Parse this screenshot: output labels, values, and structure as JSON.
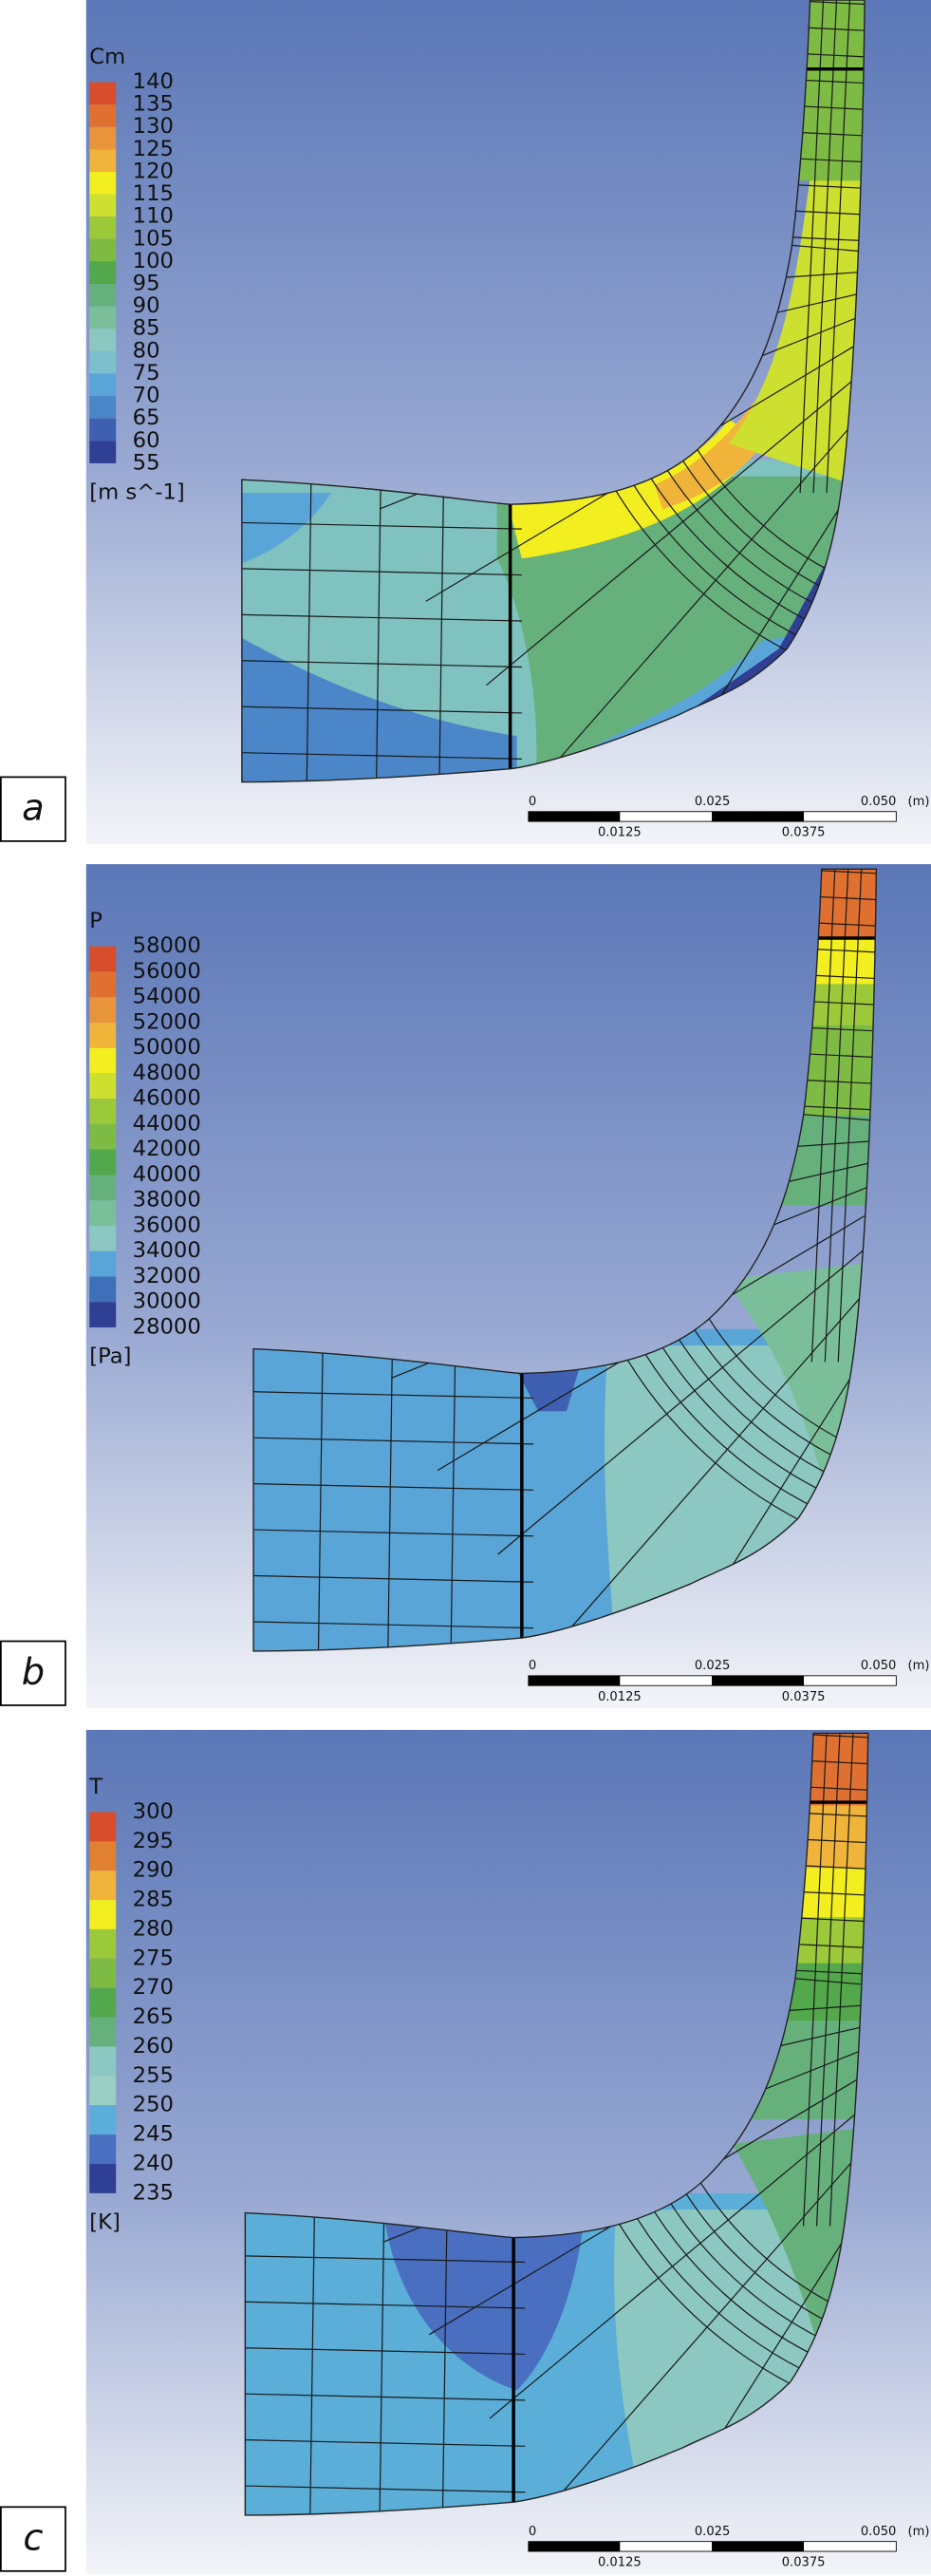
{
  "panels": [
    {
      "label": "a",
      "variable": "Cm",
      "unit": "[m s^-1]",
      "levels": [
        140,
        135,
        130,
        125,
        120,
        115,
        110,
        105,
        100,
        95,
        90,
        85,
        80,
        75,
        70,
        65,
        60,
        55
      ],
      "colors": [
        "#d84d2c",
        "#e07030",
        "#e8943a",
        "#f0b43a",
        "#f2ee1f",
        "#cde030",
        "#9bc93a",
        "#7dbb45",
        "#52a84a",
        "#66b07c",
        "#7bbf9a",
        "#8cc7c1",
        "#7dbfcc",
        "#5aa5d8",
        "#4a86c8",
        "#3f5fb0",
        "#2f3f93"
      ],
      "scale_top": [
        "0",
        "0.025",
        "0.050",
        "(m)"
      ],
      "scale_bottom": [
        "0.0125",
        "0.0375"
      ]
    },
    {
      "label": "b",
      "variable": "P",
      "unit": "[Pa]",
      "levels": [
        58000,
        56000,
        54000,
        52000,
        50000,
        48000,
        46000,
        44000,
        42000,
        40000,
        38000,
        36000,
        34000,
        32000,
        30000,
        28000
      ],
      "colors": [
        "#d84d2c",
        "#e07030",
        "#e8943a",
        "#f0b43a",
        "#f2ee1f",
        "#cde030",
        "#9bc93a",
        "#7dbb45",
        "#52a84a",
        "#66b07c",
        "#7bbf9a",
        "#8cc7c1",
        "#5aa5d8",
        "#3f6fb8",
        "#2f3f93"
      ],
      "scale_top": [
        "0",
        "0.025",
        "0.050",
        "(m)"
      ],
      "scale_bottom": [
        "0.0125",
        "0.0375"
      ]
    },
    {
      "label": "c",
      "variable": "T",
      "unit": "[K]",
      "levels": [
        300,
        295,
        290,
        285,
        280,
        275,
        270,
        265,
        260,
        255,
        250,
        245,
        240,
        235
      ],
      "colors": [
        "#d84d2c",
        "#e08030",
        "#f0b43a",
        "#f2ee1f",
        "#9bc93a",
        "#7dbb45",
        "#52a84a",
        "#66b07c",
        "#8cc7c1",
        "#9ccfc4",
        "#5aaed8",
        "#4a6fc0",
        "#2f3f93"
      ],
      "scale_top": [
        "0",
        "0.025",
        "0.050",
        "(m)"
      ],
      "scale_bottom": [
        "0.0125",
        "0.0375"
      ]
    }
  ]
}
